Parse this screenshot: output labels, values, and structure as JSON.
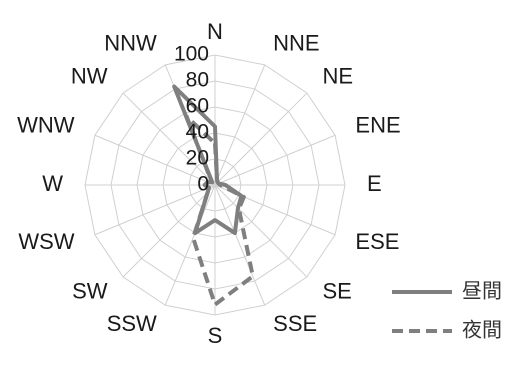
{
  "chart_data": {
    "type": "radar",
    "directions": [
      "N",
      "NNE",
      "NE",
      "ENE",
      "E",
      "ESE",
      "SE",
      "SSE",
      "S",
      "SSW",
      "SW",
      "WSW",
      "W",
      "WNW",
      "NW",
      "NNW"
    ],
    "radial_ticks": [
      "0",
      "20",
      "40",
      "60",
      "80",
      "100"
    ],
    "rlim": [
      0,
      100
    ],
    "grid": true,
    "legend_position": "right",
    "series": [
      {
        "name": "昼間",
        "style": "solid",
        "color": "#7f7f7f",
        "values": [
          45,
          4,
          3,
          3,
          8,
          22,
          25,
          40,
          27,
          40,
          8,
          5,
          8,
          6,
          3,
          82
        ]
      },
      {
        "name": "夜間",
        "style": "dashed",
        "color": "#7f7f7f",
        "values": [
          32,
          4,
          3,
          3,
          4,
          24,
          26,
          76,
          92,
          44,
          8,
          8,
          7,
          6,
          4,
          57
        ]
      }
    ]
  }
}
